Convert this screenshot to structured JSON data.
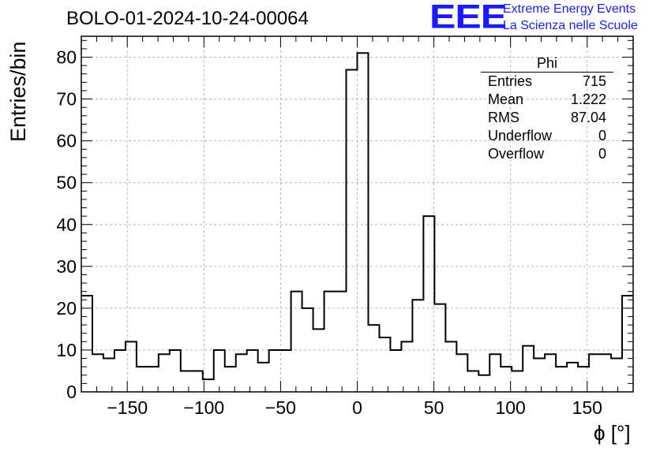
{
  "header": {
    "title": "BOLO-01-2024-10-24-00064",
    "logo_text": "EEE",
    "org_line1": "Extreme Energy Events",
    "org_line2": "La Scienza nelle Scuole",
    "brand_color": "#1a1aff"
  },
  "stats_box": {
    "title": "Phi",
    "rows": [
      {
        "label": "Entries",
        "value": "715"
      },
      {
        "label": "Mean",
        "value": "1.222"
      },
      {
        "label": "RMS",
        "value": "87.04"
      },
      {
        "label": "Underflow",
        "value": "0"
      },
      {
        "label": "Overflow",
        "value": "0"
      }
    ]
  },
  "chart_data": {
    "type": "bar",
    "histogram": true,
    "title": "BOLO-01-2024-10-24-00064",
    "xlabel": "ϕ [°]",
    "ylabel": "Entries/bin",
    "xlim": [
      -180,
      180
    ],
    "ylim": [
      0,
      85
    ],
    "bin_width": 7.2,
    "xticks": [
      -150,
      -100,
      -50,
      0,
      50,
      100,
      150
    ],
    "yticks": [
      0,
      10,
      20,
      30,
      40,
      50,
      60,
      70,
      80
    ],
    "grid": true,
    "legend": "none",
    "series": [
      {
        "values": [
          23,
          9,
          8,
          10,
          12,
          6,
          6,
          9,
          10,
          5,
          5,
          3,
          10,
          6,
          9,
          10,
          7,
          10,
          10,
          24,
          20,
          15,
          24,
          24,
          77,
          81,
          16,
          13,
          10,
          12,
          22,
          42,
          21,
          12,
          9,
          5,
          4,
          9,
          6,
          5,
          11,
          8,
          9,
          6,
          7,
          6,
          9,
          9,
          8,
          23
        ]
      }
    ]
  }
}
